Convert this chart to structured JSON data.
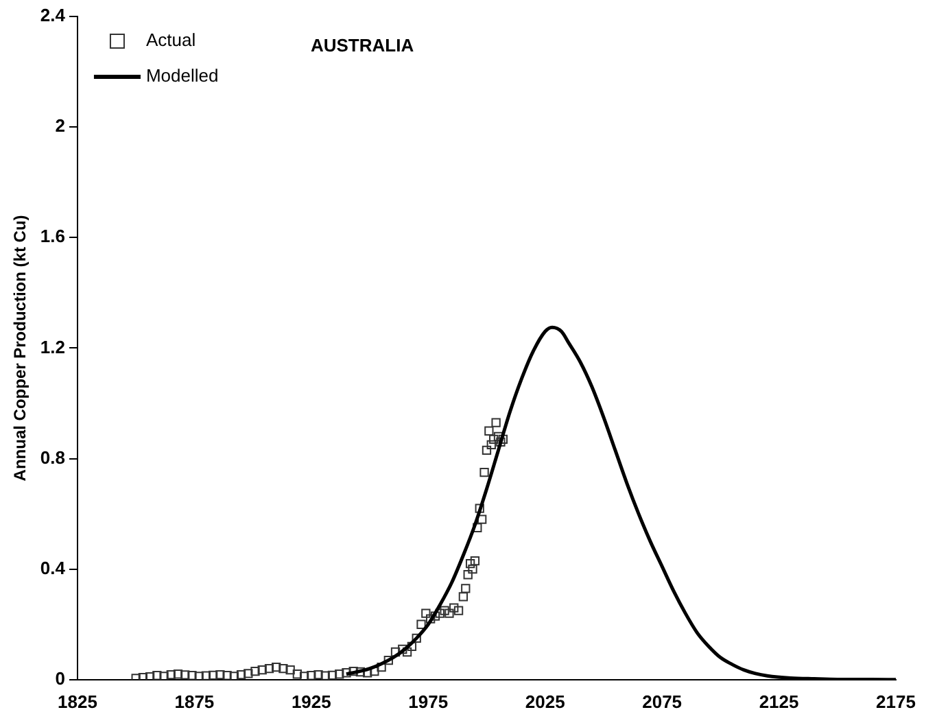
{
  "chart_data": {
    "type": "scatter",
    "title": "AUSTRALIA",
    "ylabel": "Annual Copper Production (kt Cu)",
    "xlim": [
      1825,
      2175
    ],
    "xticks": [
      1825,
      1875,
      1925,
      1975,
      2025,
      2075,
      2125,
      2175
    ],
    "ylim": [
      0,
      2.4
    ],
    "yticks": [
      0,
      0.4,
      0.8,
      1.2,
      1.6,
      2,
      2.4
    ],
    "grid": false,
    "legend": "top left",
    "marker": "square",
    "series": [
      {
        "name": "Actual",
        "type": "scatter",
        "color": "#333333",
        "x": [
          1850,
          1853,
          1856,
          1859,
          1862,
          1865,
          1868,
          1871,
          1874,
          1877,
          1880,
          1883,
          1886,
          1889,
          1892,
          1895,
          1898,
          1901,
          1904,
          1907,
          1910,
          1913,
          1916,
          1919,
          1922,
          1925,
          1928,
          1931,
          1934,
          1937,
          1940,
          1943,
          1946,
          1949,
          1952,
          1955,
          1958,
          1961,
          1964,
          1966,
          1968,
          1970,
          1972,
          1974,
          1976,
          1978,
          1980,
          1982,
          1984,
          1986,
          1988,
          1990,
          1991,
          1992,
          1993,
          1994,
          1995,
          1996,
          1997,
          1998,
          1999,
          2000,
          2001,
          2002,
          2003,
          2004,
          2005,
          2006,
          2007
        ],
        "values": [
          0.005,
          0.008,
          0.01,
          0.015,
          0.012,
          0.018,
          0.02,
          0.017,
          0.015,
          0.012,
          0.014,
          0.016,
          0.018,
          0.015,
          0.012,
          0.018,
          0.022,
          0.03,
          0.035,
          0.04,
          0.045,
          0.04,
          0.035,
          0.02,
          0.012,
          0.015,
          0.018,
          0.014,
          0.016,
          0.02,
          0.025,
          0.03,
          0.028,
          0.025,
          0.03,
          0.045,
          0.07,
          0.1,
          0.11,
          0.1,
          0.12,
          0.15,
          0.2,
          0.24,
          0.22,
          0.23,
          0.24,
          0.25,
          0.24,
          0.26,
          0.25,
          0.3,
          0.33,
          0.38,
          0.42,
          0.4,
          0.43,
          0.55,
          0.62,
          0.58,
          0.75,
          0.83,
          0.9,
          0.85,
          0.87,
          0.93,
          0.88,
          0.86,
          0.87
        ]
      },
      {
        "name": "Modelled",
        "type": "line",
        "color": "#000000",
        "marker": "none",
        "x": [
          1940,
          1950,
          1960,
          1965,
          1970,
          1975,
          1980,
          1985,
          1990,
          1995,
          2000,
          2005,
          2010,
          2015,
          2020,
          2025,
          2028,
          2032,
          2035,
          2040,
          2045,
          2050,
          2055,
          2060,
          2065,
          2070,
          2075,
          2080,
          2085,
          2090,
          2095,
          2100,
          2105,
          2110,
          2115,
          2120,
          2130,
          2140,
          2150,
          2160,
          2175
        ],
        "values": [
          0.02,
          0.04,
          0.08,
          0.11,
          0.15,
          0.2,
          0.27,
          0.35,
          0.45,
          0.56,
          0.69,
          0.83,
          0.97,
          1.09,
          1.19,
          1.26,
          1.275,
          1.26,
          1.22,
          1.15,
          1.06,
          0.95,
          0.83,
          0.71,
          0.6,
          0.5,
          0.41,
          0.32,
          0.24,
          0.17,
          0.12,
          0.08,
          0.055,
          0.035,
          0.022,
          0.014,
          0.006,
          0.003,
          0.001,
          0.001,
          0
        ]
      }
    ]
  }
}
